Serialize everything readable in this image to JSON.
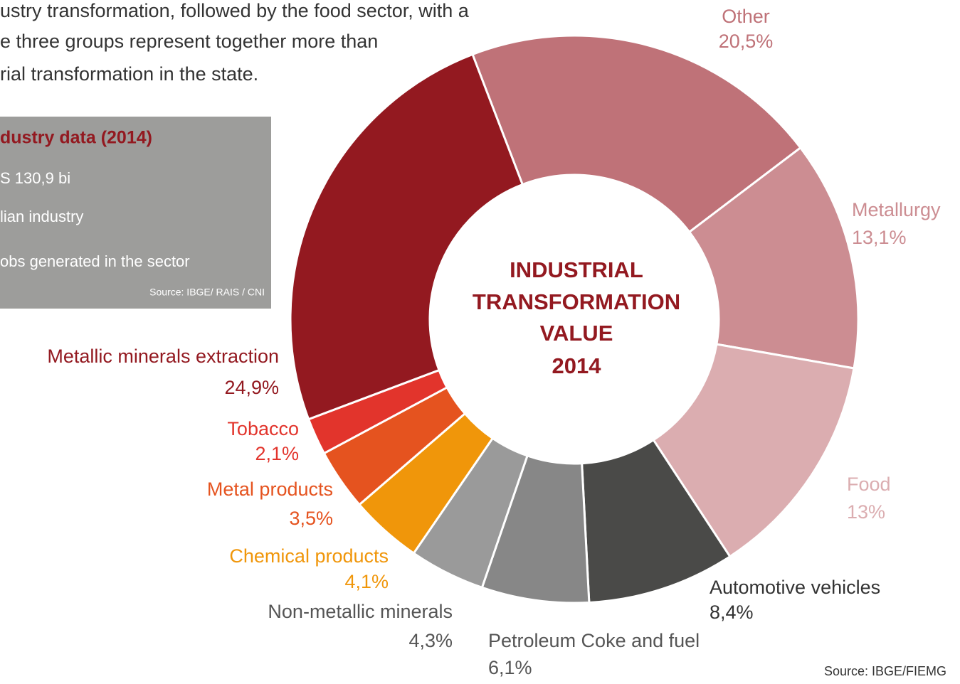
{
  "intro_text": [
    "ustry transformation, followed by the food sector, with a",
    "e three groups represent together more than",
    "rial transformation in the state."
  ],
  "info_box": {
    "title": "dustry data (2014)",
    "lines": [
      "S 130,9 bi",
      "lian industry",
      "obs generated in the sector"
    ],
    "source": "Source: IBGE/ RAIS / CNI"
  },
  "chart_data": {
    "type": "donut",
    "title": [
      "INDUSTRIAL",
      "TRANSFORMATION",
      "VALUE",
      "2014"
    ],
    "categories": [
      "Other",
      "Metallurgy",
      "Food",
      "Automotive vehicles",
      "Petroleum Coke and fuel",
      "Non-metallic minerals",
      "Chemical products",
      "Metal products",
      "Tobacco",
      "Metallic minerals extraction"
    ],
    "values": [
      20.5,
      13.1,
      13,
      8.4,
      6.1,
      4.3,
      4.1,
      3.5,
      2.1,
      24.9
    ],
    "value_labels": [
      "20,5%",
      "13,1%",
      "13%",
      "8,4%",
      "6,1%",
      "4,3%",
      "4,1%",
      "3,5%",
      "2,1%",
      "24,9%"
    ],
    "colors": [
      "#bf7278",
      "#cc8d92",
      "#dbadb0",
      "#4a4a48",
      "#878787",
      "#9a9a9a",
      "#f0960a",
      "#e5531f",
      "#e2342c",
      "#931920"
    ],
    "source": "Source: IBGE/FIEMG"
  }
}
